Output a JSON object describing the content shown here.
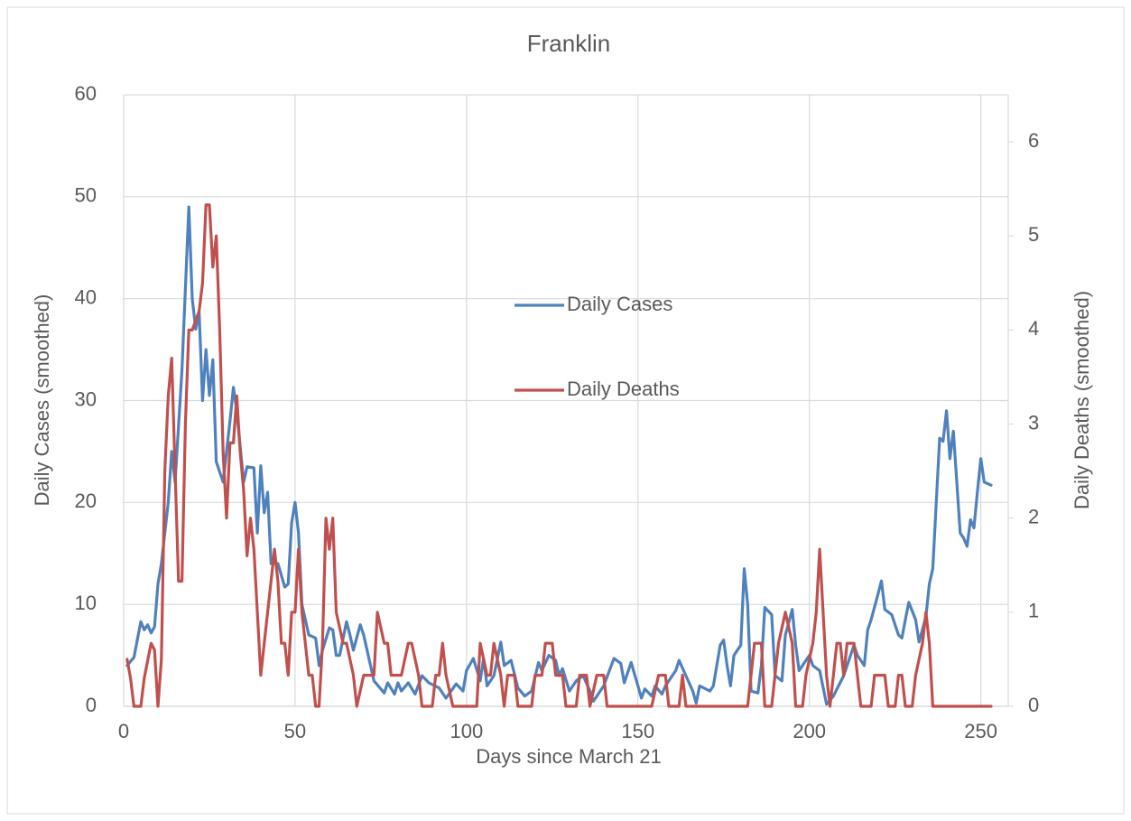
{
  "chart_data": {
    "type": "line",
    "title": "Franklin",
    "x_label": "Days since March 21",
    "y_label": "Daily Cases (smoothed)",
    "y2_label": "Daily Deaths (smoothed)",
    "xlim": [
      0,
      258
    ],
    "xticks": [
      0,
      50,
      100,
      150,
      200,
      250
    ],
    "ylim": [
      0,
      60
    ],
    "yticks": [
      0,
      10,
      20,
      30,
      40,
      50,
      60
    ],
    "y2lim": [
      0,
      6.5
    ],
    "y2ticks": [
      0,
      1,
      2,
      3,
      4,
      5,
      6
    ],
    "grid": true,
    "legend": "center",
    "series": [
      {
        "name": "Daily Cases",
        "color": "#4f81bd",
        "axis": "y",
        "x": [
          1,
          3,
          5,
          6,
          7,
          8,
          9,
          10,
          11,
          13,
          14,
          15,
          17,
          19,
          20,
          21,
          22,
          23,
          24,
          25,
          26,
          27,
          28,
          29,
          31,
          32,
          33,
          35,
          36,
          38,
          39,
          40,
          41,
          42,
          43,
          45,
          47,
          48,
          49,
          50,
          51,
          52,
          54,
          56,
          57,
          58,
          60,
          61,
          62,
          63,
          65,
          66,
          67,
          69,
          70,
          72,
          73,
          76,
          77,
          79,
          80,
          81,
          83,
          85,
          87,
          89,
          92,
          94,
          97,
          99,
          100,
          102,
          104,
          105,
          106,
          108,
          110,
          111,
          113,
          115,
          117,
          119,
          121,
          122,
          124,
          126,
          127,
          128,
          130,
          132,
          134,
          136,
          137,
          140,
          143,
          145,
          146,
          148,
          150,
          151,
          152,
          154,
          155,
          157,
          158,
          161,
          162,
          164,
          166,
          167,
          168,
          171,
          172,
          174,
          175,
          176,
          177,
          178,
          180,
          181,
          182,
          183,
          185,
          186,
          187,
          189,
          190,
          192,
          193,
          195,
          196,
          197,
          199,
          200,
          201,
          203,
          205,
          207,
          210,
          211,
          213,
          214,
          216,
          217,
          218,
          220,
          221,
          222,
          224,
          226,
          227,
          228,
          229,
          231,
          232,
          234,
          235,
          236,
          238,
          239,
          240,
          241,
          242,
          244,
          245,
          246,
          247,
          248,
          249,
          250,
          251,
          253
        ],
        "values": [
          4,
          4.8,
          8.3,
          7.5,
          8,
          7.2,
          7.8,
          12,
          14,
          20,
          25,
          22,
          33,
          49,
          40,
          37,
          38.7,
          30,
          35,
          30.5,
          34,
          24,
          23,
          22,
          28,
          31.3,
          29,
          22,
          23.5,
          23.4,
          17,
          23.6,
          19,
          21,
          14,
          14,
          11.7,
          12,
          18,
          20,
          17,
          10,
          7,
          6.7,
          4,
          5.5,
          7.7,
          7.5,
          5,
          5,
          8.3,
          7,
          5.5,
          8,
          7,
          4,
          2.5,
          1.3,
          2.3,
          1.2,
          2.3,
          1.5,
          2.3,
          1.2,
          3,
          2.3,
          1.8,
          0.8,
          2.2,
          1.5,
          3.5,
          4.7,
          2.5,
          4.7,
          2,
          3,
          6.3,
          4,
          4.5,
          1.8,
          1,
          1.5,
          4.3,
          3.5,
          5,
          4.5,
          3,
          3.7,
          1.5,
          2.5,
          3,
          1.5,
          0.5,
          2,
          4.7,
          4.2,
          2.3,
          4.3,
          2,
          0.8,
          1.7,
          1,
          2,
          1.2,
          2,
          3.5,
          4.5,
          3,
          1.5,
          0.3,
          2,
          1.5,
          2,
          6,
          6.5,
          4,
          2,
          5,
          6,
          13.5,
          10,
          1.5,
          1.3,
          4,
          9.7,
          9,
          3,
          2.5,
          7,
          9.5,
          6,
          3.5,
          4.5,
          5,
          4,
          3.5,
          0.2,
          1,
          3,
          4,
          6,
          5,
          4,
          7.5,
          8.5,
          11,
          12.3,
          9.5,
          9,
          7,
          6.7,
          8.5,
          10.2,
          8.5,
          6.3,
          8.8,
          12,
          13.5,
          26.3,
          26,
          29,
          24.3,
          27,
          17,
          16.5,
          15.7,
          18.3,
          17.5,
          21,
          24.3,
          22,
          21.7
        ]
      },
      {
        "name": "Daily Deaths",
        "color": "#c0504d",
        "axis": "y2",
        "x": [
          1,
          2,
          3,
          5,
          6,
          8,
          9,
          10,
          11,
          12,
          13,
          14,
          15,
          16,
          17,
          18,
          19,
          20,
          22,
          23,
          24,
          25,
          26,
          27,
          28,
          29,
          30,
          31,
          32,
          33,
          34,
          35,
          36,
          37,
          38,
          39,
          40,
          42,
          43,
          44,
          45,
          46,
          47,
          48,
          49,
          50,
          51,
          52,
          54,
          55,
          56,
          57,
          58,
          59,
          60,
          61,
          62,
          64,
          65,
          67,
          68,
          70,
          73,
          74,
          76,
          77,
          78,
          81,
          83,
          84,
          86,
          87,
          90,
          91,
          92,
          93,
          94,
          96,
          103,
          104,
          106,
          107,
          108,
          110,
          111,
          112,
          114,
          115,
          119,
          120,
          122,
          123,
          125,
          126,
          128,
          129,
          132,
          133,
          135,
          136,
          138,
          140,
          141,
          154,
          156,
          158,
          159,
          162,
          163,
          164,
          182,
          184,
          186,
          187,
          189,
          191,
          193,
          195,
          196,
          198,
          199,
          201,
          202,
          203,
          204,
          205,
          206,
          207,
          208,
          209,
          210,
          211,
          213,
          214,
          215,
          218,
          219,
          222,
          223,
          225,
          226,
          227,
          228,
          230,
          231,
          233,
          234,
          235,
          236,
          253
        ],
        "values": [
          0.5,
          0.3,
          0,
          0,
          0.3,
          0.67,
          0.6,
          0,
          0.5,
          2.5,
          3.3,
          3.7,
          2.5,
          1.33,
          1.33,
          3,
          4,
          4,
          4.2,
          4.5,
          5.33,
          5.33,
          4.67,
          5,
          4,
          2.7,
          2,
          2.8,
          2.8,
          3.3,
          2.7,
          2.3,
          1.6,
          2,
          1.67,
          1,
          0.33,
          1,
          1.33,
          1.67,
          1.33,
          0.67,
          0.67,
          0.33,
          1,
          1,
          1.67,
          1,
          0.33,
          0.33,
          0,
          0,
          0.67,
          2,
          1.67,
          2,
          1,
          0.67,
          0.67,
          0.33,
          0,
          0.33,
          0.33,
          1,
          0.67,
          0.67,
          0.33,
          0.33,
          0.67,
          0.67,
          0.33,
          0,
          0,
          0.33,
          0.33,
          0.67,
          0.33,
          0,
          0,
          0.67,
          0.33,
          0.33,
          0.67,
          0.33,
          0,
          0.33,
          0.33,
          0,
          0,
          0.33,
          0.33,
          0.67,
          0.67,
          0.33,
          0.33,
          0,
          0,
          0.33,
          0.33,
          0,
          0.33,
          0.33,
          0,
          0,
          0.33,
          0.33,
          0,
          0,
          0.33,
          0,
          0,
          0.67,
          0.67,
          0,
          0,
          0.67,
          1,
          0.67,
          0,
          0,
          0.33,
          0.67,
          1,
          1.67,
          1,
          0.33,
          0,
          0.33,
          0.67,
          0.67,
          0.33,
          0.67,
          0.67,
          0.33,
          0,
          0,
          0.33,
          0.33,
          0,
          0,
          0.33,
          0.33,
          0,
          0,
          0.33,
          0.67,
          1,
          0.67,
          0,
          0
        ]
      }
    ]
  }
}
